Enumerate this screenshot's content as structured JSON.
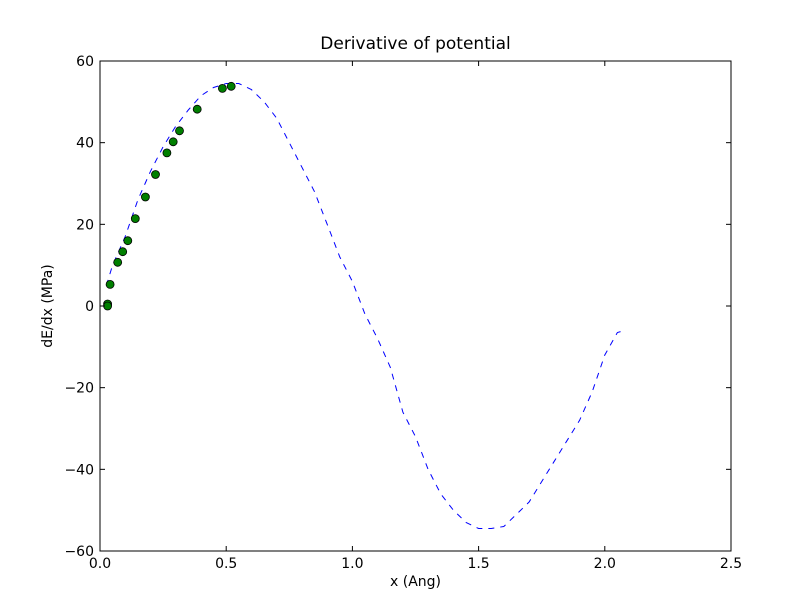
{
  "chart_data": {
    "type": "scatter",
    "title": "Derivative of potential",
    "xlabel": "x (Ang)",
    "ylabel": "dE/dx (MPa)",
    "xlim": [
      0.0,
      2.5
    ],
    "ylim": [
      -60,
      60
    ],
    "xticks": [
      0.0,
      0.5,
      1.0,
      1.5,
      2.0,
      2.5
    ],
    "xtick_labels": [
      "0.0",
      "0.5",
      "1.0",
      "1.5",
      "2.0",
      "2.5"
    ],
    "yticks": [
      -60,
      -40,
      -20,
      0,
      20,
      40,
      60
    ],
    "ytick_labels": [
      "−60",
      "−40",
      "−20",
      "0",
      "20",
      "40",
      "60"
    ],
    "grid": false,
    "series": [
      {
        "style": "dashed-line",
        "color": "#0000ff",
        "x": [
          0.025,
          0.05,
          0.1,
          0.15,
          0.2,
          0.25,
          0.3,
          0.35,
          0.4,
          0.45,
          0.5,
          0.55,
          0.6,
          0.65,
          0.7,
          0.75,
          0.8,
          0.85,
          0.9,
          0.95,
          1.0,
          1.05,
          1.1,
          1.15,
          1.2,
          1.25,
          1.3,
          1.35,
          1.4,
          1.45,
          1.5,
          1.55,
          1.6,
          1.65,
          1.7,
          1.75,
          1.8,
          1.85,
          1.9,
          1.95,
          2.0,
          2.05,
          2.08
        ],
        "y": [
          5,
          10,
          17,
          26,
          33,
          39,
          44,
          48,
          51.5,
          53.5,
          54.5,
          54.5,
          53,
          50,
          46,
          40,
          34,
          28,
          20,
          12,
          6,
          -2,
          -8,
          -15,
          -26,
          -32,
          -40,
          -46,
          -50,
          -53,
          -54.5,
          -54.5,
          -54,
          -51,
          -48,
          -43,
          -38,
          -33,
          -28,
          -21,
          -12,
          -6.5,
          -6
        ]
      },
      {
        "style": "markers",
        "color": "#007f00",
        "x": [
          0.03,
          0.03,
          0.04,
          0.07,
          0.09,
          0.11,
          0.14,
          0.18,
          0.22,
          0.265,
          0.29,
          0.315,
          0.385,
          0.485,
          0.52
        ],
        "y": [
          0.5,
          0,
          5.3,
          10.7,
          13.3,
          16,
          21.4,
          26.7,
          32.2,
          37.5,
          40.2,
          42.9,
          48.2,
          53.3,
          53.8
        ]
      }
    ]
  }
}
